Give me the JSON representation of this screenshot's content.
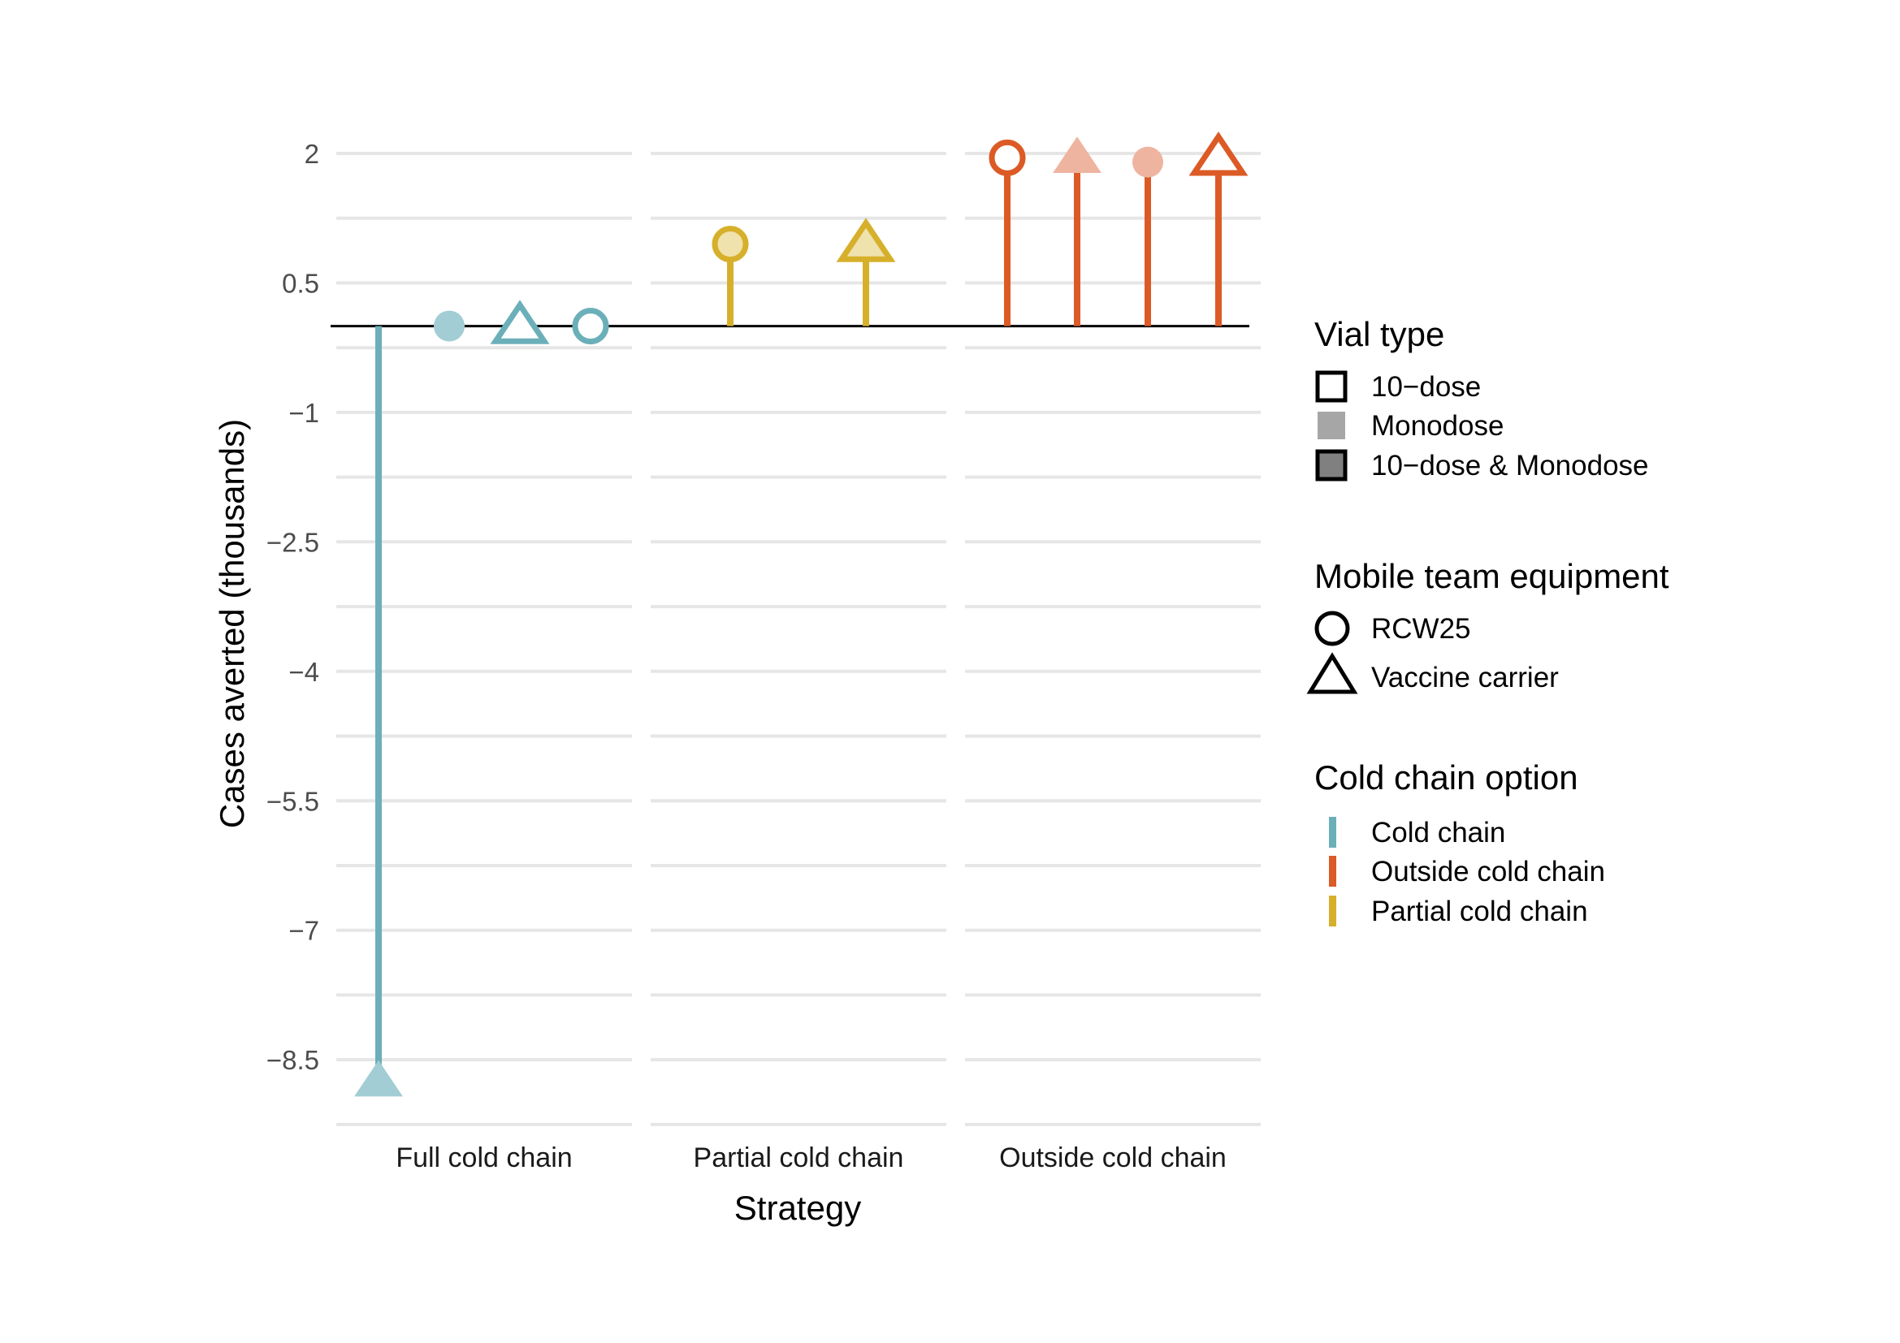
{
  "chart_data": {
    "type": "lollipop",
    "xlabel": "Strategy",
    "ylabel": "Cases averted (thousands)",
    "ylim": [
      -9.25,
      2.45
    ],
    "y_ticks": [
      {
        "value": 2,
        "label": "2"
      },
      {
        "value": 0.5,
        "label": "0.5"
      },
      {
        "value": -1,
        "label": "−1"
      },
      {
        "value": -2.5,
        "label": "−2.5"
      },
      {
        "value": -4,
        "label": "−4"
      },
      {
        "value": -5.5,
        "label": "−5.5"
      },
      {
        "value": -7,
        "label": "−7"
      },
      {
        "value": -8.5,
        "label": "−8.5"
      }
    ],
    "y_minor_gridlines": [
      1.25,
      -0.25,
      -1.75,
      -3.25,
      -4.75,
      -6.25,
      -7.75,
      -9.25
    ],
    "grid": true,
    "facets": [
      "Full cold chain",
      "Partial cold chain",
      "Outside cold chain"
    ],
    "points": [
      {
        "facet": "Full cold chain",
        "pos": 0,
        "value": -8.75,
        "cold_chain": "Cold chain",
        "equipment": "Vaccine carrier",
        "vial": "Monodose"
      },
      {
        "facet": "Full cold chain",
        "pos": 1,
        "value": 0.0,
        "cold_chain": "Cold chain",
        "equipment": "RCW25",
        "vial": "Monodose"
      },
      {
        "facet": "Full cold chain",
        "pos": 2,
        "value": 0.0,
        "cold_chain": "Cold chain",
        "equipment": "Vaccine carrier",
        "vial": "10−dose"
      },
      {
        "facet": "Full cold chain",
        "pos": 3,
        "value": 0.0,
        "cold_chain": "Cold chain",
        "equipment": "RCW25",
        "vial": "10−dose"
      },
      {
        "facet": "Partial cold chain",
        "pos": 1,
        "value": 0.95,
        "cold_chain": "Partial cold chain",
        "equipment": "RCW25",
        "vial": "10−dose & Monodose"
      },
      {
        "facet": "Partial cold chain",
        "pos": 3,
        "value": 0.95,
        "cold_chain": "Partial cold chain",
        "equipment": "Vaccine carrier",
        "vial": "10−dose & Monodose"
      },
      {
        "facet": "Outside cold chain",
        "pos": 0,
        "value": 1.95,
        "cold_chain": "Outside cold chain",
        "equipment": "RCW25",
        "vial": "10−dose"
      },
      {
        "facet": "Outside cold chain",
        "pos": 1,
        "value": 1.95,
        "cold_chain": "Outside cold chain",
        "equipment": "Vaccine carrier",
        "vial": "Monodose"
      },
      {
        "facet": "Outside cold chain",
        "pos": 2,
        "value": 1.9,
        "cold_chain": "Outside cold chain",
        "equipment": "RCW25",
        "vial": "Monodose"
      },
      {
        "facet": "Outside cold chain",
        "pos": 3,
        "value": 1.95,
        "cold_chain": "Outside cold chain",
        "equipment": "Vaccine carrier",
        "vial": "10−dose"
      }
    ],
    "legends": {
      "vial_type": {
        "title": "Vial type",
        "items": [
          "10−dose",
          "Monodose",
          "10−dose & Monodose"
        ]
      },
      "equipment": {
        "title": "Mobile team equipment",
        "items": [
          "RCW25",
          "Vaccine carrier"
        ]
      },
      "cold_chain": {
        "title": "Cold chain option",
        "items": [
          {
            "label": "Cold chain",
            "color": "#6bafb9"
          },
          {
            "label": "Outside cold chain",
            "color": "#dc5a25"
          },
          {
            "label": "Partial cold chain",
            "color": "#d7b02b"
          }
        ]
      }
    },
    "colors": {
      "Cold chain": {
        "stroke": "#6bafb9",
        "light": "#a2cdd4",
        "mid": "#a2cdd4"
      },
      "Partial cold chain": {
        "stroke": "#d7b02b",
        "light": "#e9cf74",
        "mid": "#f0e2ad"
      },
      "Outside cold chain": {
        "stroke": "#dc5a25",
        "light": "#efb4a0",
        "mid": "#f0b49e"
      }
    },
    "legend_swatches": {
      "monodose": "#a6a6a6",
      "both": "#808080"
    }
  }
}
